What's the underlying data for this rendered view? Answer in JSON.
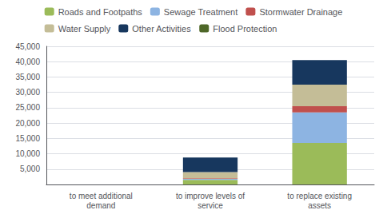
{
  "chart_data": {
    "type": "bar",
    "stacked": true,
    "grid": true,
    "legend": "top",
    "categories": [
      "to meet additional\ndemand",
      "to improve levels of\nservice",
      "to replace existing\nassets"
    ],
    "series": [
      {
        "name": "Roads and Footpaths",
        "color": "#9BBB59",
        "values": [
          0,
          1500,
          13500
        ]
      },
      {
        "name": "Sewage Treatment",
        "color": "#8DB4E2",
        "values": [
          0,
          300,
          10000
        ]
      },
      {
        "name": "Stormwater Drainage",
        "color": "#C0504D",
        "values": [
          0,
          200,
          2000
        ]
      },
      {
        "name": "Water Supply",
        "color": "#C4BD97",
        "values": [
          0,
          2000,
          7000
        ]
      },
      {
        "name": "Other Activities",
        "color": "#17375E",
        "values": [
          0,
          4800,
          8000
        ]
      },
      {
        "name": "Flood Protection",
        "color": "#4E6728",
        "values": [
          0,
          0,
          0
        ]
      }
    ],
    "ylim": [
      0,
      45000
    ],
    "yticks": [
      {
        "value": 5000,
        "label": "5,000"
      },
      {
        "value": 10000,
        "label": "10,000"
      },
      {
        "value": 15000,
        "label": "15,000"
      },
      {
        "value": 20000,
        "label": "20,000"
      },
      {
        "value": 25000,
        "label": "25,000"
      },
      {
        "value": 30000,
        "label": "30,000"
      },
      {
        "value": 35000,
        "label": "35,000"
      },
      {
        "value": 40000,
        "label": "40,000"
      },
      {
        "value": 45000,
        "label": "45,000"
      }
    ]
  }
}
